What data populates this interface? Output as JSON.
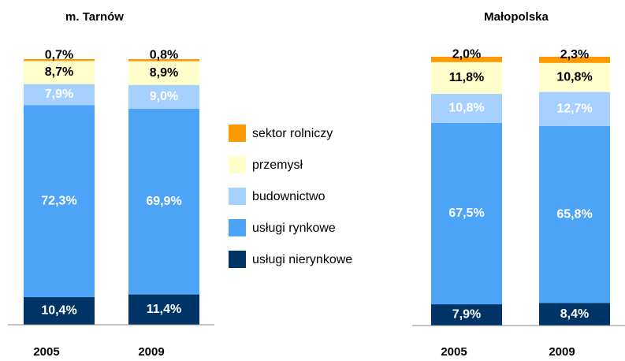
{
  "chart_data": [
    {
      "type": "bar",
      "stacked": true,
      "title": "m. Tarnów",
      "categories": [
        "2005",
        "2009"
      ],
      "ylim": [
        0,
        100
      ],
      "series": [
        {
          "name": "sektor rolniczy",
          "color": "#ff9900",
          "values": [
            0.7,
            0.8
          ],
          "value_labels": [
            "0,7%",
            "0,8%"
          ]
        },
        {
          "name": "przemysł",
          "color": "#ffffcc",
          "values": [
            8.7,
            8.9
          ],
          "value_labels": [
            "8,7%",
            "8,9%"
          ]
        },
        {
          "name": "budownictwo",
          "color": "#a6d0ff",
          "values": [
            7.9,
            9.0
          ],
          "value_labels": [
            "7,9%",
            "9,0%"
          ]
        },
        {
          "name": "usługi rynkowe",
          "color": "#4da3f5",
          "values": [
            72.3,
            69.9
          ],
          "value_labels": [
            "72,3%",
            "69,9%"
          ]
        },
        {
          "name": "usługi nierynkowe",
          "color": "#003366",
          "values": [
            10.4,
            11.4
          ],
          "value_labels": [
            "10,4%",
            "11,4%"
          ]
        }
      ]
    },
    {
      "type": "bar",
      "stacked": true,
      "title": "Małopolska",
      "categories": [
        "2005",
        "2009"
      ],
      "ylim": [
        0,
        100
      ],
      "series": [
        {
          "color": "#ff9900",
          "values": [
            2.0,
            2.3
          ],
          "value_labels": [
            "2,0%",
            "2,3%"
          ]
        },
        {
          "color": "#ffffcc",
          "values": [
            11.8,
            10.8
          ],
          "value_labels": [
            "11,8%",
            "10,8%"
          ]
        },
        {
          "color": "#a6d0ff",
          "values": [
            10.8,
            12.7
          ],
          "value_labels": [
            "10,8%",
            "12,7%"
          ]
        },
        {
          "color": "#4da3f5",
          "values": [
            67.5,
            65.8
          ],
          "value_labels": [
            "67,5%",
            "65,8%"
          ]
        },
        {
          "color": "#003366",
          "values": [
            7.9,
            8.4
          ],
          "value_labels": [
            "7,9%",
            "8,4%"
          ]
        }
      ]
    }
  ]
}
